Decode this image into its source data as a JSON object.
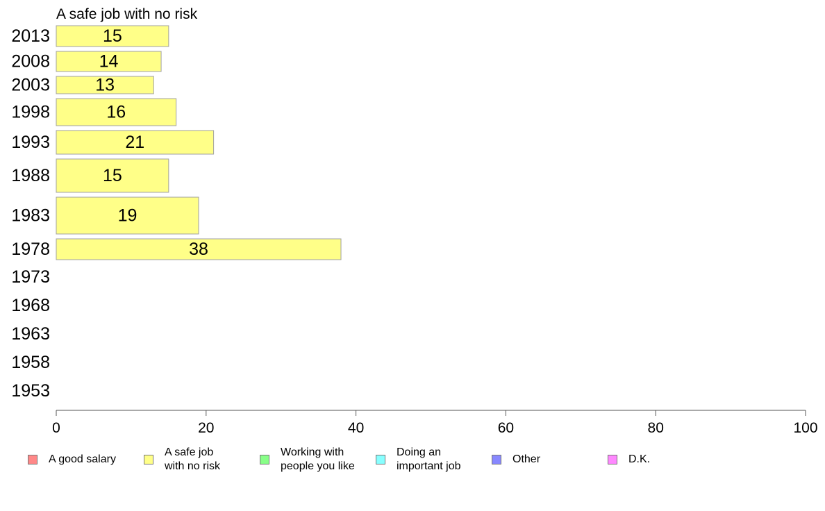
{
  "chart_data": {
    "type": "bar",
    "orientation": "horizontal",
    "title": "A safe job with no risk",
    "categories": [
      "2013",
      "2008",
      "2003",
      "1998",
      "1993",
      "1988",
      "1983",
      "1978",
      "1973",
      "1968",
      "1963",
      "1958",
      "1953"
    ],
    "values": [
      15,
      14,
      13,
      16,
      21,
      15,
      19,
      38,
      null,
      null,
      null,
      null,
      null
    ],
    "bar_color": "#ffff88",
    "bar_border_color": "#a0a0a0",
    "xlim": [
      0,
      100
    ],
    "xticks": [
      "0",
      "20",
      "40",
      "60",
      "80",
      "100"
    ],
    "grid": false,
    "legend_position": "bottom",
    "legend": [
      {
        "label": "A good salary",
        "color": "#ff8888"
      },
      {
        "label": "A safe job\nwith no risk",
        "color": "#ffff88"
      },
      {
        "label": "Working with\npeople you like",
        "color": "#88ff88"
      },
      {
        "label": "Doing an\nimportant job",
        "color": "#88ffff"
      },
      {
        "label": "Other",
        "color": "#8888ff"
      },
      {
        "label": "D.K.",
        "color": "#ff88ff"
      }
    ]
  }
}
